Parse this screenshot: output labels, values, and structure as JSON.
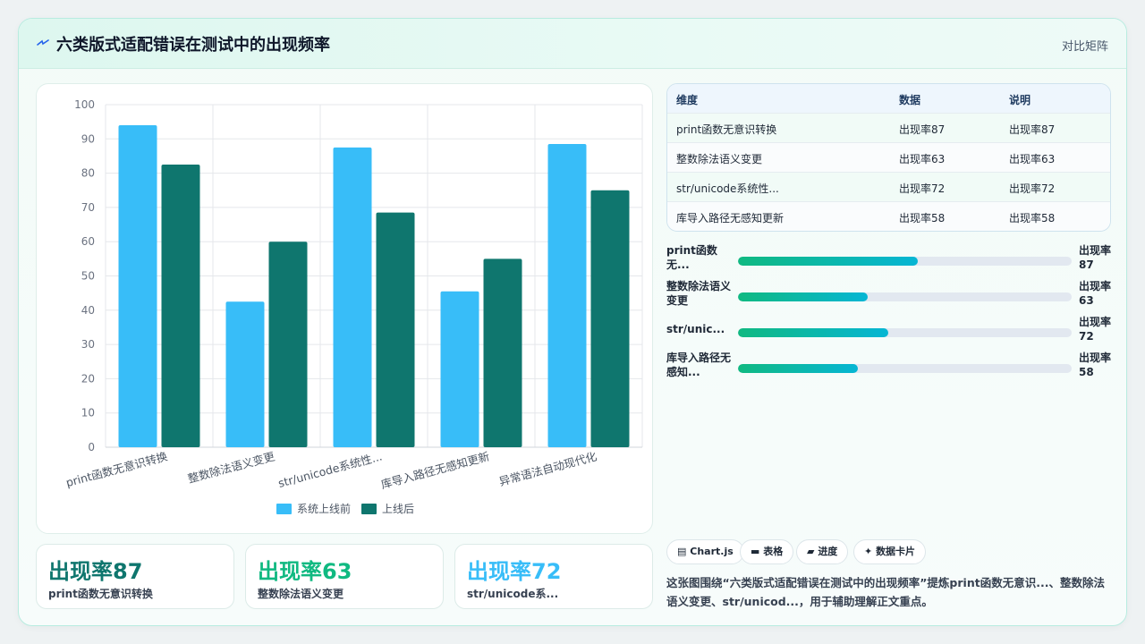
{
  "header": {
    "title": "六类版式适配错误在测试中的出现频率",
    "action": "对比矩阵"
  },
  "colors": {
    "series_before": "#38bdf8",
    "series_after": "#0f766e",
    "kpi_1": "#0f766e",
    "kpi_2": "#10b981",
    "kpi_3": "#38bdf8"
  },
  "chart_data": {
    "type": "bar",
    "categories": [
      "print函数无意识转换",
      "整数除法语义变更",
      "str/unicode系统性...",
      "库导入路径无感知更新",
      "异常语法自动现代化"
    ],
    "series": [
      {
        "name": "系统上线前",
        "values": [
          94,
          42.5,
          87.5,
          45.5,
          88.5
        ]
      },
      {
        "name": "上线后",
        "values": [
          82.5,
          60,
          68.5,
          55,
          75
        ]
      }
    ],
    "ylim": [
      0,
      100
    ],
    "yticks": [
      0,
      10,
      20,
      30,
      40,
      50,
      60,
      70,
      80,
      90,
      100
    ],
    "legend_position": "bottom",
    "grid": true
  },
  "kpis": [
    {
      "value": "出现率87",
      "label": "print函数无意识转换"
    },
    {
      "value": "出现率63",
      "label": "整数除法语义变更"
    },
    {
      "value": "出现率72",
      "label": "str/unicode系..."
    }
  ],
  "table": {
    "headers": [
      "维度",
      "数据",
      "说明"
    ],
    "rows": [
      [
        "print函数无意识转换",
        "出现率87",
        "出现率87"
      ],
      [
        "整数除法语义变更",
        "出现率63",
        "出现率63"
      ],
      [
        "str/unicode系统性...",
        "出现率72",
        "出现率72"
      ],
      [
        "库导入路径无感知更新",
        "出现率58",
        "出现率58"
      ]
    ]
  },
  "progress": [
    {
      "label": "print函数无...",
      "value_text": "出现率87",
      "fraction": 0.54
    },
    {
      "label": "整数除法语义变更",
      "value_text": "出现率63",
      "fraction": 0.39
    },
    {
      "label": "str/unic...",
      "value_text": "出现率72",
      "fraction": 0.45
    },
    {
      "label": "库导入路径无感知...",
      "value_text": "出现率58",
      "fraction": 0.36
    }
  ],
  "chips": [
    {
      "icon": "▤",
      "label": "Chart.js"
    },
    {
      "icon": "▬",
      "label": "表格"
    },
    {
      "icon": "▰",
      "label": "进度"
    },
    {
      "icon": "✦",
      "label": "数据卡片"
    }
  ],
  "summary": "这张图围绕“六类版式适配错误在测试中的出现频率”提炼print函数无意识...、整数除法语义变更、str/unicod...，用于辅助理解正文重点。"
}
